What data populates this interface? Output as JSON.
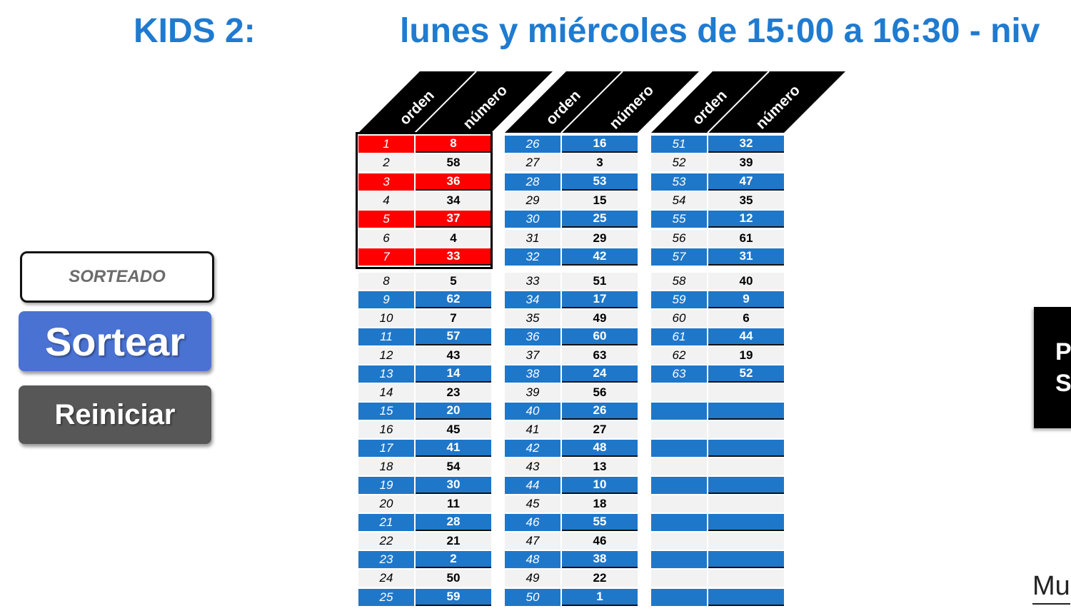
{
  "title": {
    "group": "KIDS 2:",
    "schedule": "lunes y miércoles de 15:00 a 16:30 - niv"
  },
  "controls": {
    "sorteado_label": "SORTEADO",
    "sortear_label": "Sortear",
    "reiniciar_label": "Reiniciar"
  },
  "table": {
    "col_orden": "orden",
    "col_numero": "número",
    "colors": {
      "blue": "#1f77c9",
      "red": "#ff0000",
      "light": "#f2f2f2",
      "header": "#000000"
    },
    "highlighted_orders": [
      1,
      3,
      5,
      7
    ],
    "columns": [
      {
        "rows": [
          {
            "o": "1",
            "n": "8"
          },
          {
            "o": "2",
            "n": "58"
          },
          {
            "o": "3",
            "n": "36"
          },
          {
            "o": "4",
            "n": "34"
          },
          {
            "o": "5",
            "n": "37"
          },
          {
            "o": "6",
            "n": "4"
          },
          {
            "o": "7",
            "n": "33"
          },
          {
            "o": "8",
            "n": "5"
          },
          {
            "o": "9",
            "n": "62"
          },
          {
            "o": "10",
            "n": "7"
          },
          {
            "o": "11",
            "n": "57"
          },
          {
            "o": "12",
            "n": "43"
          },
          {
            "o": "13",
            "n": "14"
          },
          {
            "o": "14",
            "n": "23"
          },
          {
            "o": "15",
            "n": "20"
          },
          {
            "o": "16",
            "n": "45"
          },
          {
            "o": "17",
            "n": "41"
          },
          {
            "o": "18",
            "n": "54"
          },
          {
            "o": "19",
            "n": "30"
          },
          {
            "o": "20",
            "n": "11"
          },
          {
            "o": "21",
            "n": "28"
          },
          {
            "o": "22",
            "n": "21"
          },
          {
            "o": "23",
            "n": "2"
          },
          {
            "o": "24",
            "n": "50"
          },
          {
            "o": "25",
            "n": "59"
          }
        ]
      },
      {
        "rows": [
          {
            "o": "26",
            "n": "16"
          },
          {
            "o": "27",
            "n": "3"
          },
          {
            "o": "28",
            "n": "53"
          },
          {
            "o": "29",
            "n": "15"
          },
          {
            "o": "30",
            "n": "25"
          },
          {
            "o": "31",
            "n": "29"
          },
          {
            "o": "32",
            "n": "42"
          },
          {
            "o": "33",
            "n": "51"
          },
          {
            "o": "34",
            "n": "17"
          },
          {
            "o": "35",
            "n": "49"
          },
          {
            "o": "36",
            "n": "60"
          },
          {
            "o": "37",
            "n": "63"
          },
          {
            "o": "38",
            "n": "24"
          },
          {
            "o": "39",
            "n": "56"
          },
          {
            "o": "40",
            "n": "26"
          },
          {
            "o": "41",
            "n": "27"
          },
          {
            "o": "42",
            "n": "48"
          },
          {
            "o": "43",
            "n": "13"
          },
          {
            "o": "44",
            "n": "10"
          },
          {
            "o": "45",
            "n": "18"
          },
          {
            "o": "46",
            "n": "55"
          },
          {
            "o": "47",
            "n": "46"
          },
          {
            "o": "48",
            "n": "38"
          },
          {
            "o": "49",
            "n": "22"
          },
          {
            "o": "50",
            "n": "1"
          }
        ]
      },
      {
        "rows": [
          {
            "o": "51",
            "n": "32"
          },
          {
            "o": "52",
            "n": "39"
          },
          {
            "o": "53",
            "n": "47"
          },
          {
            "o": "54",
            "n": "35"
          },
          {
            "o": "55",
            "n": "12"
          },
          {
            "o": "56",
            "n": "61"
          },
          {
            "o": "57",
            "n": "31"
          },
          {
            "o": "58",
            "n": "40"
          },
          {
            "o": "59",
            "n": "9"
          },
          {
            "o": "60",
            "n": "6"
          },
          {
            "o": "61",
            "n": "44"
          },
          {
            "o": "62",
            "n": "19"
          },
          {
            "o": "63",
            "n": "52"
          },
          {
            "o": "",
            "n": ""
          },
          {
            "o": "",
            "n": ""
          },
          {
            "o": "",
            "n": ""
          },
          {
            "o": "",
            "n": ""
          },
          {
            "o": "",
            "n": ""
          },
          {
            "o": "",
            "n": ""
          },
          {
            "o": "",
            "n": ""
          },
          {
            "o": "",
            "n": ""
          },
          {
            "o": "",
            "n": ""
          },
          {
            "o": "",
            "n": ""
          },
          {
            "o": "",
            "n": ""
          },
          {
            "o": "",
            "n": ""
          }
        ]
      }
    ]
  },
  "side_panel": {
    "line1": "P",
    "line2": "S",
    "bottom_text": "Mu"
  }
}
